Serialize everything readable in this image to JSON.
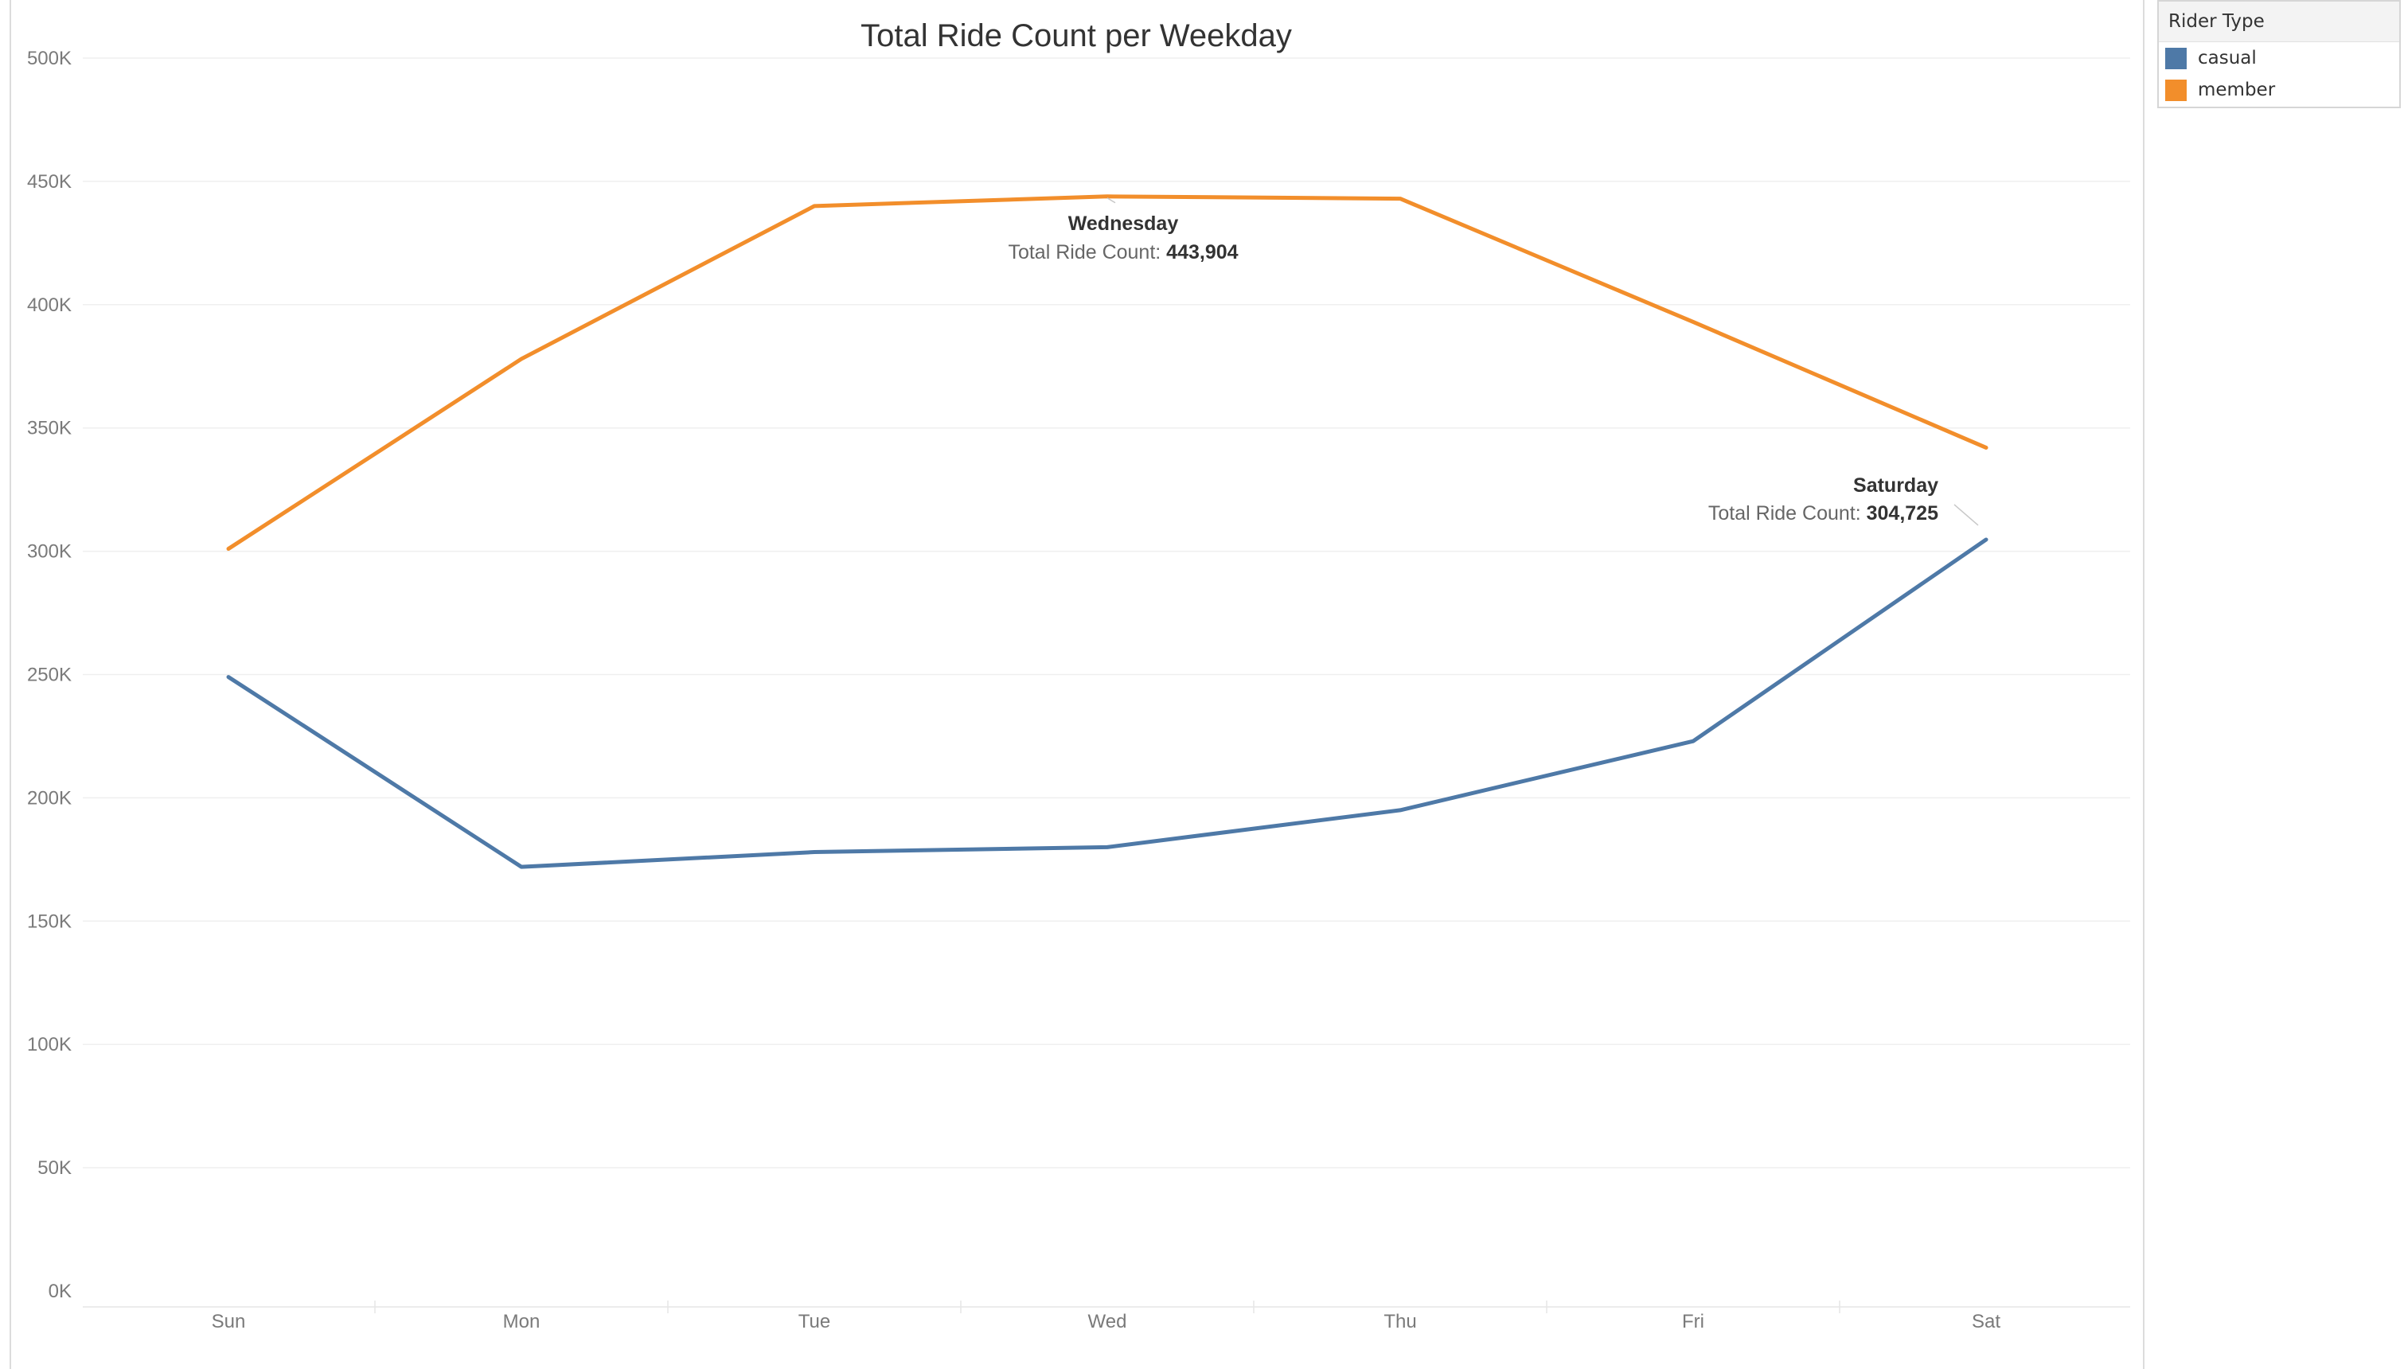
{
  "colors": {
    "casual": "#4e79a7",
    "member": "#f28e2b",
    "grid": "#efefef",
    "tick_text": "#7a7a7a",
    "title_text": "#333333"
  },
  "legend": {
    "title": "Rider Type",
    "items": [
      {
        "label": "casual",
        "color": "#4e79a7"
      },
      {
        "label": "member",
        "color": "#f28e2b"
      }
    ]
  },
  "chart_data": {
    "type": "line",
    "title": "Total Ride Count per Weekday",
    "xlabel": "",
    "ylabel": "",
    "categories": [
      "Sun",
      "Mon",
      "Tue",
      "Wed",
      "Thu",
      "Fri",
      "Sat"
    ],
    "ylim": [
      0,
      500000
    ],
    "yticks": [
      0,
      50000,
      100000,
      150000,
      200000,
      250000,
      300000,
      350000,
      400000,
      450000,
      500000
    ],
    "ytick_labels": [
      "0K",
      "50K",
      "100K",
      "150K",
      "200K",
      "250K",
      "300K",
      "350K",
      "400K",
      "450K",
      "500K"
    ],
    "grid": true,
    "legend_position": "top-right",
    "series": [
      {
        "name": "casual",
        "color": "#4e79a7",
        "values": [
          249000,
          172000,
          178000,
          180000,
          195000,
          223000,
          304725
        ]
      },
      {
        "name": "member",
        "color": "#f28e2b",
        "values": [
          301000,
          378000,
          440000,
          443904,
          443000,
          393000,
          342000
        ]
      }
    ],
    "annotations": [
      {
        "series": "member",
        "category": "Wed",
        "heading": "Wednesday",
        "label": "Total Ride Count: ",
        "value": "443,904"
      },
      {
        "series": "casual",
        "category": "Sat",
        "heading": "Saturday",
        "label": "Total Ride Count: ",
        "value": "304,725"
      }
    ]
  }
}
